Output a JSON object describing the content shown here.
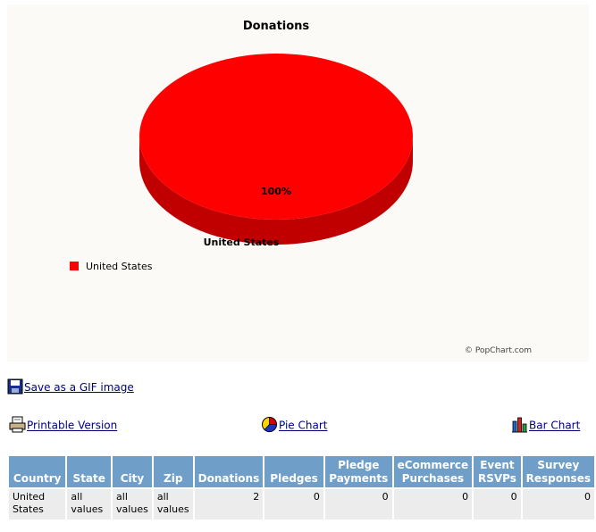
{
  "chart_data": {
    "type": "pie",
    "title": "Donations",
    "categories": [
      "United States"
    ],
    "values": [
      100
    ],
    "series": [
      {
        "name": "United States",
        "values": [
          100
        ]
      }
    ],
    "labels": [
      "100%"
    ],
    "legend": {
      "entries": [
        "United States"
      ],
      "placement": "left"
    },
    "colors": {
      "slice": "#ff0000",
      "slice_side": "#c00000"
    },
    "three_d": true
  },
  "chart_credit": "© PopChart.com",
  "save_gif_label": "Save as a GIF image",
  "links": {
    "printable": "Printable Version",
    "pie": "Pie Chart",
    "bar": "Bar Chart"
  },
  "table": {
    "headers": [
      "Country",
      "State",
      "City",
      "Zip",
      "Donations",
      "Pledges",
      "Pledge Payments",
      "eCommerce Purchases",
      "Event RSVPs",
      "Survey Responses"
    ],
    "rows": [
      [
        "United States",
        "all values",
        "all values",
        "all values",
        "2",
        "0",
        "0",
        "0",
        "0",
        "0"
      ]
    ]
  },
  "colors": {
    "header_bg": "#6f9fc9",
    "cell_bg": "#ececec",
    "link": "#000080",
    "panel_bg": "#fbfaf7"
  }
}
